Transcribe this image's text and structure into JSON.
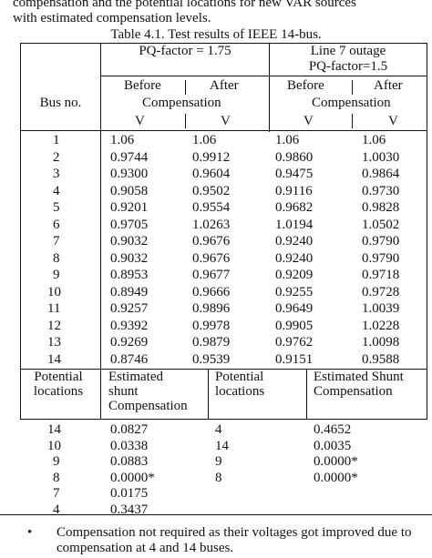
{
  "intro_lines": [
    "compensation and the potential locations for new VAR sources",
    "with estimated compensation levels."
  ],
  "table_title": "Table 4.1. Test results of IEEE 14-bus.",
  "headers": {
    "group1": "PQ-factor = 1.75",
    "group2_line1": "Line 7 outage",
    "group2_line2": "PQ-factor=1.5",
    "bus_no": "Bus no.",
    "before": "Before",
    "after": "After",
    "compensation": "Compensation",
    "unit": "V"
  },
  "rows": [
    {
      "bus": "1",
      "v1": "1.06",
      "v2": "1.06",
      "v3": "1.06",
      "v4": "1.06"
    },
    {
      "bus": "2",
      "v1": "0.9744",
      "v2": "0.9912",
      "v3": "0.9860",
      "v4": "1.0030"
    },
    {
      "bus": "3",
      "v1": "0.9300",
      "v2": "0.9604",
      "v3": "0.9475",
      "v4": "0.9864"
    },
    {
      "bus": "4",
      "v1": "0.9058",
      "v2": "0.9502",
      "v3": "0.9116",
      "v4": "0.9730"
    },
    {
      "bus": "5",
      "v1": "0.9201",
      "v2": "0.9554",
      "v3": "0.9682",
      "v4": "0.9828"
    },
    {
      "bus": "6",
      "v1": "0.9705",
      "v2": "1.0263",
      "v3": "1.0194",
      "v4": "1.0502"
    },
    {
      "bus": "7",
      "v1": "0.9032",
      "v2": "0.9676",
      "v3": "0.9240",
      "v4": "0.9790"
    },
    {
      "bus": "8",
      "v1": "0.9032",
      "v2": "0.9676",
      "v3": "0.9240",
      "v4": "0.9790"
    },
    {
      "bus": "9",
      "v1": "0.8953",
      "v2": "0.9677",
      "v3": "0.9209",
      "v4": "0.9718"
    },
    {
      "bus": "10",
      "v1": "0.8949",
      "v2": "0.9666",
      "v3": "0.9255",
      "v4": "0.9728"
    },
    {
      "bus": "11",
      "v1": "0.9257",
      "v2": "0.9896",
      "v3": "0.9649",
      "v4": "1.0039"
    },
    {
      "bus": "12",
      "v1": "0.9392",
      "v2": "0.9978",
      "v3": "0.9905",
      "v4": "1.0228"
    },
    {
      "bus": "13",
      "v1": "0.9269",
      "v2": "0.9879",
      "v3": "0.9762",
      "v4": "1.0098"
    },
    {
      "bus": "14",
      "v1": "0.8746",
      "v2": "0.9539",
      "v3": "0.9151",
      "v4": "0.9588"
    }
  ],
  "lower_headers": {
    "potential_line1": "Potential",
    "potential_line2": "locations",
    "estimated_line1": "Estimated",
    "estimated_line2": "shunt",
    "estimated_line3": "Compensation",
    "potential2_line1": "Potential",
    "potential2_line2": "locations",
    "shunt_line1": "Estimated Shunt",
    "shunt_line2": "Compensation"
  },
  "lower_rows": [
    {
      "loc1": "14",
      "comp1": "0.0827",
      "loc2": "4",
      "comp2": "0.4652"
    },
    {
      "loc1": "10",
      "comp1": "0.0338",
      "loc2": "14",
      "comp2": "0.0035"
    },
    {
      "loc1": "9",
      "comp1": "0.0883",
      "loc2": "9",
      "comp2": "0.0000*"
    },
    {
      "loc1": "8",
      "comp1": "0.0000*",
      "loc2": "8",
      "comp2": "0.0000*"
    },
    {
      "loc1": "7",
      "comp1": "0.0175",
      "loc2": "",
      "comp2": ""
    },
    {
      "loc1": "4",
      "comp1": "0.3437",
      "loc2": "",
      "comp2": ""
    }
  ],
  "footnote": {
    "bullet": "•",
    "text": "Compensation not required as their voltages got improved due to compensation at 4 and 14 buses."
  }
}
